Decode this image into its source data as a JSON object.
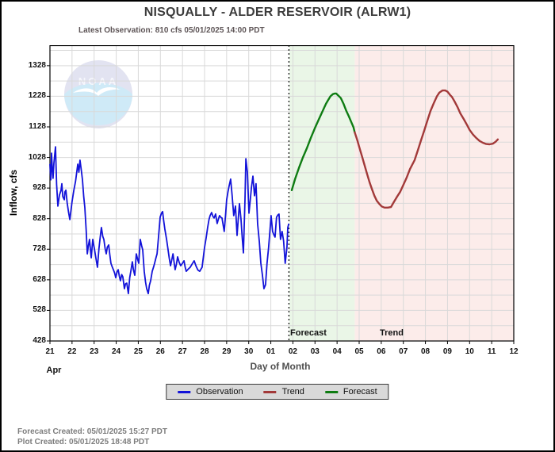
{
  "title": "NISQUALLY - ALDER RESERVOIR  (ALRW1)",
  "subtitle": "Latest Observation: 810 cfs 05/01/2025 14:00 PDT",
  "watermark": "NOAA",
  "y_axis": {
    "label": "Inflow, cfs",
    "ticks": [
      "428",
      "528",
      "628",
      "728",
      "828",
      "928",
      "1028",
      "1128",
      "1228",
      "1328"
    ]
  },
  "x_axis": {
    "label": "Day of Month",
    "month": "Apr",
    "ticks": [
      "21",
      "22",
      "23",
      "24",
      "25",
      "26",
      "27",
      "28",
      "29",
      "30",
      "01",
      "02",
      "03",
      "04",
      "05",
      "06",
      "07",
      "08",
      "09",
      "10",
      "11",
      "12"
    ]
  },
  "region_labels": {
    "forecast": "Forecast",
    "trend": "Trend"
  },
  "legend": {
    "items": [
      {
        "label": "Observation",
        "color": "#1313d9"
      },
      {
        "label": "Trend",
        "color": "#a23939"
      },
      {
        "label": "Forecast",
        "color": "#0e7c12"
      }
    ]
  },
  "footer": {
    "line1": "Forecast Created: 05/01/2025 15:27 PDT",
    "line2": "Plot Created: 05/01/2025 18:48 PDT"
  },
  "colors": {
    "observation_line": "#1313d9",
    "trend_line": "#a23939",
    "forecast_line": "#0e7c12",
    "forecast_band": "#eaf6e7",
    "trend_band": "#fcecea",
    "gridline": "#d9d9d9",
    "axis": "#000000",
    "legend_bg": "#d9d9d9"
  },
  "chart_data": {
    "type": "line",
    "title": "NISQUALLY - ALDER RESERVOIR  (ALRW1)",
    "xlabel": "Day of Month",
    "ylabel": "Inflow, cfs",
    "x_unit": "days since Apr 21 2025 00:00",
    "xlim": [
      0,
      21
    ],
    "ylim": [
      428,
      1395
    ],
    "y_major_ticks": [
      428,
      528,
      628,
      728,
      828,
      928,
      1028,
      1128,
      1228,
      1328
    ],
    "grid": true,
    "legend_position": "bottom",
    "now_line_day": 10.82,
    "bands": [
      {
        "label": "Forecast",
        "from_day": 10.84,
        "to_day": 13.8,
        "fill": "#eaf6e7"
      },
      {
        "label": "Trend",
        "from_day": 13.8,
        "to_day": 21,
        "fill": "#fcecea"
      }
    ],
    "series": [
      {
        "name": "Observation",
        "color": "#1313d9",
        "width": 1.8,
        "points": [
          [
            0.0,
            1005
          ],
          [
            0.04,
            955
          ],
          [
            0.07,
            1042
          ],
          [
            0.11,
            985
          ],
          [
            0.14,
            960
          ],
          [
            0.18,
            1010
          ],
          [
            0.25,
            1063
          ],
          [
            0.3,
            940
          ],
          [
            0.36,
            869
          ],
          [
            0.43,
            905
          ],
          [
            0.5,
            920
          ],
          [
            0.54,
            942
          ],
          [
            0.58,
            900
          ],
          [
            0.65,
            890
          ],
          [
            0.68,
            915
          ],
          [
            0.72,
            921
          ],
          [
            0.78,
            880
          ],
          [
            0.84,
            850
          ],
          [
            0.9,
            825
          ],
          [
            1.0,
            884
          ],
          [
            1.08,
            920
          ],
          [
            1.16,
            950
          ],
          [
            1.26,
            1006
          ],
          [
            1.31,
            980
          ],
          [
            1.36,
            1019
          ],
          [
            1.42,
            985
          ],
          [
            1.47,
            955
          ],
          [
            1.53,
            900
          ],
          [
            1.58,
            864
          ],
          [
            1.64,
            790
          ],
          [
            1.69,
            713
          ],
          [
            1.74,
            740
          ],
          [
            1.79,
            760
          ],
          [
            1.84,
            720
          ],
          [
            1.87,
            700
          ],
          [
            1.94,
            760
          ],
          [
            2.0,
            735
          ],
          [
            2.05,
            713
          ],
          [
            2.1,
            690
          ],
          [
            2.15,
            669
          ],
          [
            2.22,
            730
          ],
          [
            2.28,
            770
          ],
          [
            2.33,
            799
          ],
          [
            2.39,
            770
          ],
          [
            2.44,
            760
          ],
          [
            2.5,
            730
          ],
          [
            2.55,
            713
          ],
          [
            2.6,
            735
          ],
          [
            2.66,
            742
          ],
          [
            2.71,
            710
          ],
          [
            2.76,
            682
          ],
          [
            2.82,
            670
          ],
          [
            2.87,
            661
          ],
          [
            2.93,
            650
          ],
          [
            2.98,
            635
          ],
          [
            3.04,
            655
          ],
          [
            3.09,
            661
          ],
          [
            3.14,
            640
          ],
          [
            3.19,
            625
          ],
          [
            3.25,
            645
          ],
          [
            3.3,
            638
          ],
          [
            3.37,
            599
          ],
          [
            3.42,
            615
          ],
          [
            3.48,
            617
          ],
          [
            3.55,
            583
          ],
          [
            3.61,
            635
          ],
          [
            3.66,
            656
          ],
          [
            3.73,
            687
          ],
          [
            3.78,
            660
          ],
          [
            3.84,
            643
          ],
          [
            3.91,
            713
          ],
          [
            3.97,
            695
          ],
          [
            4.02,
            682
          ],
          [
            4.09,
            760
          ],
          [
            4.15,
            740
          ],
          [
            4.2,
            726
          ],
          [
            4.27,
            656
          ],
          [
            4.33,
            620
          ],
          [
            4.38,
            599
          ],
          [
            4.45,
            583
          ],
          [
            4.5,
            610
          ],
          [
            4.56,
            625
          ],
          [
            4.63,
            656
          ],
          [
            4.69,
            670
          ],
          [
            4.74,
            682
          ],
          [
            4.8,
            700
          ],
          [
            4.85,
            713
          ],
          [
            4.92,
            773
          ],
          [
            4.99,
            833
          ],
          [
            5.05,
            846
          ],
          [
            5.1,
            851
          ],
          [
            5.15,
            820
          ],
          [
            5.2,
            794
          ],
          [
            5.28,
            760
          ],
          [
            5.35,
            726
          ],
          [
            5.4,
            700
          ],
          [
            5.46,
            674
          ],
          [
            5.52,
            695
          ],
          [
            5.57,
            713
          ],
          [
            5.62,
            685
          ],
          [
            5.67,
            661
          ],
          [
            5.73,
            680
          ],
          [
            5.78,
            703
          ],
          [
            5.85,
            685
          ],
          [
            5.92,
            674
          ],
          [
            6.0,
            682
          ],
          [
            6.07,
            690
          ],
          [
            6.12,
            670
          ],
          [
            6.17,
            656
          ],
          [
            6.25,
            662
          ],
          [
            6.35,
            669
          ],
          [
            6.44,
            680
          ],
          [
            6.53,
            690
          ],
          [
            6.62,
            672
          ],
          [
            6.7,
            660
          ],
          [
            6.78,
            656
          ],
          [
            6.89,
            669
          ],
          [
            7.0,
            734
          ],
          [
            7.07,
            765
          ],
          [
            7.14,
            799
          ],
          [
            7.2,
            825
          ],
          [
            7.25,
            838
          ],
          [
            7.32,
            848
          ],
          [
            7.38,
            835
          ],
          [
            7.43,
            830
          ],
          [
            7.5,
            843
          ],
          [
            7.57,
            812
          ],
          [
            7.62,
            825
          ],
          [
            7.68,
            838
          ],
          [
            7.74,
            832
          ],
          [
            7.79,
            830
          ],
          [
            7.89,
            786
          ],
          [
            7.95,
            840
          ],
          [
            8.0,
            890
          ],
          [
            8.06,
            915
          ],
          [
            8.11,
            934
          ],
          [
            8.18,
            957
          ],
          [
            8.25,
            903
          ],
          [
            8.32,
            838
          ],
          [
            8.4,
            869
          ],
          [
            8.47,
            773
          ],
          [
            8.53,
            830
          ],
          [
            8.58,
            877
          ],
          [
            8.65,
            825
          ],
          [
            8.7,
            770
          ],
          [
            8.76,
            716
          ],
          [
            8.83,
            890
          ],
          [
            8.87,
            1024
          ],
          [
            8.94,
            980
          ],
          [
            9.01,
            846
          ],
          [
            9.07,
            890
          ],
          [
            9.12,
            929
          ],
          [
            9.19,
            967
          ],
          [
            9.26,
            903
          ],
          [
            9.33,
            942
          ],
          [
            9.4,
            812
          ],
          [
            9.48,
            752
          ],
          [
            9.55,
            682
          ],
          [
            9.62,
            643
          ],
          [
            9.69,
            599
          ],
          [
            9.76,
            612
          ],
          [
            9.83,
            682
          ],
          [
            9.9,
            734
          ],
          [
            9.96,
            790
          ],
          [
            10.01,
            838
          ],
          [
            10.08,
            786
          ],
          [
            10.14,
            775
          ],
          [
            10.19,
            768
          ],
          [
            10.26,
            833
          ],
          [
            10.32,
            840
          ],
          [
            10.37,
            843
          ],
          [
            10.44,
            760
          ],
          [
            10.51,
            786
          ],
          [
            10.58,
            755
          ],
          [
            10.65,
            682
          ],
          [
            10.73,
            734
          ],
          [
            10.77,
            799
          ],
          [
            10.81,
            810
          ]
        ]
      },
      {
        "name": "Forecast",
        "color": "#0e7c12",
        "width": 2.4,
        "points": [
          [
            10.95,
            921
          ],
          [
            11.1,
            958
          ],
          [
            11.27,
            993
          ],
          [
            11.45,
            1028
          ],
          [
            11.63,
            1058
          ],
          [
            11.81,
            1092
          ],
          [
            11.99,
            1123
          ],
          [
            12.17,
            1152
          ],
          [
            12.35,
            1180
          ],
          [
            12.5,
            1204
          ],
          [
            12.6,
            1216
          ],
          [
            12.7,
            1228
          ],
          [
            12.81,
            1235
          ],
          [
            12.9,
            1237
          ],
          [
            12.96,
            1237
          ],
          [
            13.06,
            1230
          ],
          [
            13.17,
            1222
          ],
          [
            13.3,
            1202
          ],
          [
            13.42,
            1180
          ],
          [
            13.53,
            1163
          ],
          [
            13.64,
            1144
          ],
          [
            13.74,
            1127
          ],
          [
            13.8,
            1110
          ]
        ]
      },
      {
        "name": "Trend",
        "color": "#a23939",
        "width": 2.4,
        "points": [
          [
            13.8,
            1110
          ],
          [
            13.92,
            1083
          ],
          [
            14.03,
            1056
          ],
          [
            14.14,
            1029
          ],
          [
            14.25,
            1001
          ],
          [
            14.36,
            974
          ],
          [
            14.47,
            947
          ],
          [
            14.58,
            924
          ],
          [
            14.69,
            903
          ],
          [
            14.8,
            886
          ],
          [
            14.9,
            877
          ],
          [
            15.02,
            868
          ],
          [
            15.15,
            864
          ],
          [
            15.3,
            864
          ],
          [
            15.44,
            866
          ],
          [
            15.57,
            882
          ],
          [
            15.72,
            900
          ],
          [
            15.86,
            916
          ],
          [
            16.0,
            938
          ],
          [
            16.15,
            962
          ],
          [
            16.3,
            990
          ],
          [
            16.51,
            1019
          ],
          [
            16.66,
            1052
          ],
          [
            16.8,
            1084
          ],
          [
            16.95,
            1117
          ],
          [
            17.09,
            1149
          ],
          [
            17.23,
            1180
          ],
          [
            17.38,
            1206
          ],
          [
            17.52,
            1228
          ],
          [
            17.63,
            1240
          ],
          [
            17.77,
            1247
          ],
          [
            17.9,
            1247
          ],
          [
            18.0,
            1243
          ],
          [
            18.12,
            1232
          ],
          [
            18.2,
            1226
          ],
          [
            18.33,
            1210
          ],
          [
            18.45,
            1193
          ],
          [
            18.58,
            1172
          ],
          [
            18.73,
            1154
          ],
          [
            18.9,
            1132
          ],
          [
            19.0,
            1118
          ],
          [
            19.15,
            1103
          ],
          [
            19.3,
            1092
          ],
          [
            19.45,
            1082
          ],
          [
            19.6,
            1076
          ],
          [
            19.75,
            1072
          ],
          [
            19.9,
            1071
          ],
          [
            20.05,
            1073
          ],
          [
            20.17,
            1079
          ],
          [
            20.28,
            1087
          ]
        ]
      }
    ]
  }
}
